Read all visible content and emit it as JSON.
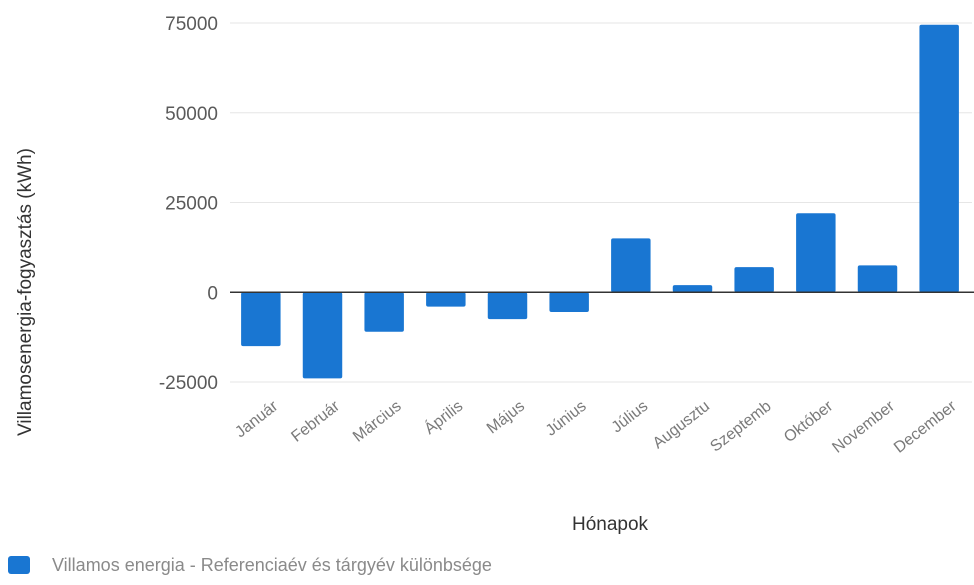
{
  "chart_data": {
    "type": "bar",
    "categories": [
      "Január",
      "Február",
      "Március",
      "Április",
      "Május",
      "Június",
      "Július",
      "Augusztu",
      "Szeptemb",
      "Október",
      "November",
      "December"
    ],
    "series": [
      {
        "name": "Villamos energia - Referenciaév és tárgyév különbsége",
        "color": "#1976d2",
        "values": [
          -15000,
          -24000,
          -11000,
          -4000,
          -7500,
          -5500,
          15000,
          2000,
          7000,
          22000,
          7500,
          74500
        ]
      }
    ],
    "xlabel": "Hónapok",
    "ylabel": "Villamosenergia-fogyasztás (kWh)",
    "ylim": [
      -25000,
      75000
    ],
    "yticks": [
      "75000",
      "50000",
      "25000",
      "0",
      "-25000"
    ],
    "grid": true,
    "legend_position": "bottom-left"
  }
}
